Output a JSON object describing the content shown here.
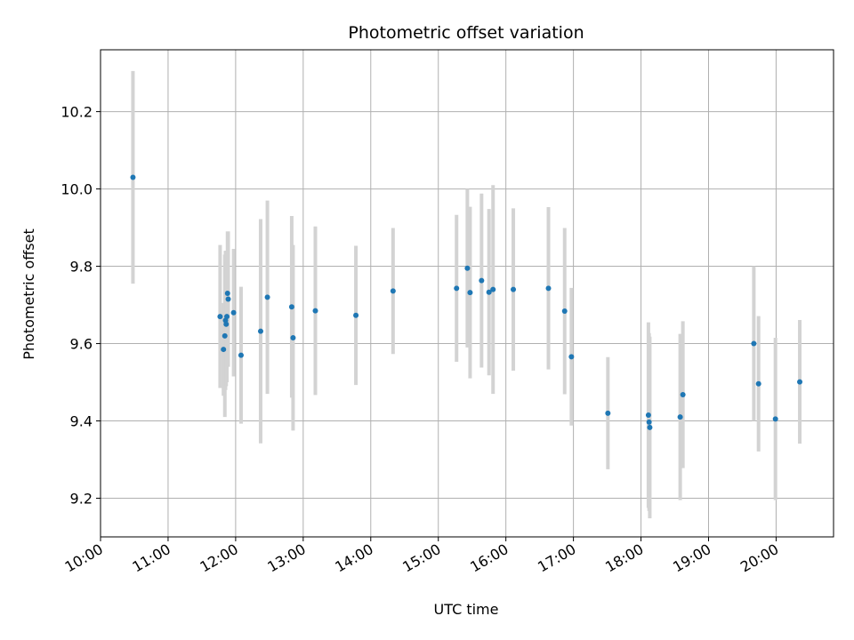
{
  "chart_data": {
    "type": "scatter",
    "title": "Photometric offset variation",
    "xlabel": "UTC time",
    "ylabel": "Photometric offset",
    "x_unit": "hours UTC",
    "xlim": [
      10.0,
      20.85
    ],
    "ylim": [
      9.1,
      10.36
    ],
    "x_ticks": [
      10,
      11,
      12,
      13,
      14,
      15,
      16,
      17,
      18,
      19,
      20
    ],
    "x_tick_labels": [
      "10:00",
      "11:00",
      "12:00",
      "13:00",
      "14:00",
      "15:00",
      "16:00",
      "17:00",
      "18:00",
      "19:00",
      "20:00"
    ],
    "y_ticks": [
      9.2,
      9.4,
      9.6,
      9.8,
      10.0,
      10.2
    ],
    "y_tick_labels": [
      "9.2",
      "9.4",
      "9.6",
      "9.8",
      "10.0",
      "10.2"
    ],
    "grid": true,
    "error_bar_color": "#d3d3d3",
    "point_color": "#1f77b4",
    "points": [
      {
        "x": 10.48,
        "y": 10.03,
        "yerr": 0.275
      },
      {
        "x": 11.77,
        "y": 9.67,
        "yerr": 0.185
      },
      {
        "x": 11.82,
        "y": 9.585,
        "yerr": 0.12
      },
      {
        "x": 11.84,
        "y": 9.62,
        "yerr": 0.21
      },
      {
        "x": 11.85,
        "y": 9.66,
        "yerr": 0.18
      },
      {
        "x": 11.86,
        "y": 9.65,
        "yerr": 0.16
      },
      {
        "x": 11.87,
        "y": 9.67,
        "yerr": 0.17
      },
      {
        "x": 11.88,
        "y": 9.73,
        "yerr": 0.16
      },
      {
        "x": 11.89,
        "y": 9.715,
        "yerr": 0.175
      },
      {
        "x": 11.97,
        "y": 9.68,
        "yerr": 0.165
      },
      {
        "x": 12.08,
        "y": 9.57,
        "yerr": 0.177
      },
      {
        "x": 12.37,
        "y": 9.632,
        "yerr": 0.29
      },
      {
        "x": 12.47,
        "y": 9.72,
        "yerr": 0.25
      },
      {
        "x": 12.83,
        "y": 9.695,
        "yerr": 0.235
      },
      {
        "x": 12.85,
        "y": 9.615,
        "yerr": 0.24
      },
      {
        "x": 13.18,
        "y": 9.685,
        "yerr": 0.218
      },
      {
        "x": 13.78,
        "y": 9.673,
        "yerr": 0.18
      },
      {
        "x": 14.33,
        "y": 9.736,
        "yerr": 0.163
      },
      {
        "x": 15.27,
        "y": 9.743,
        "yerr": 0.19
      },
      {
        "x": 15.43,
        "y": 9.795,
        "yerr": 0.205
      },
      {
        "x": 15.47,
        "y": 9.732,
        "yerr": 0.222
      },
      {
        "x": 15.64,
        "y": 9.763,
        "yerr": 0.225
      },
      {
        "x": 15.75,
        "y": 9.733,
        "yerr": 0.215
      },
      {
        "x": 15.81,
        "y": 9.74,
        "yerr": 0.27
      },
      {
        "x": 16.11,
        "y": 9.74,
        "yerr": 0.21
      },
      {
        "x": 16.63,
        "y": 9.743,
        "yerr": 0.21
      },
      {
        "x": 16.87,
        "y": 9.684,
        "yerr": 0.215
      },
      {
        "x": 16.97,
        "y": 9.566,
        "yerr": 0.178
      },
      {
        "x": 17.51,
        "y": 9.42,
        "yerr": 0.145
      },
      {
        "x": 18.11,
        "y": 9.415,
        "yerr": 0.24
      },
      {
        "x": 18.12,
        "y": 9.397,
        "yerr": 0.23
      },
      {
        "x": 18.13,
        "y": 9.383,
        "yerr": 0.235
      },
      {
        "x": 18.58,
        "y": 9.41,
        "yerr": 0.215
      },
      {
        "x": 18.62,
        "y": 9.468,
        "yerr": 0.19
      },
      {
        "x": 19.67,
        "y": 9.6,
        "yerr": 0.2
      },
      {
        "x": 19.74,
        "y": 9.496,
        "yerr": 0.175
      },
      {
        "x": 19.99,
        "y": 9.405,
        "yerr": 0.21
      },
      {
        "x": 20.35,
        "y": 9.501,
        "yerr": 0.16
      }
    ]
  }
}
